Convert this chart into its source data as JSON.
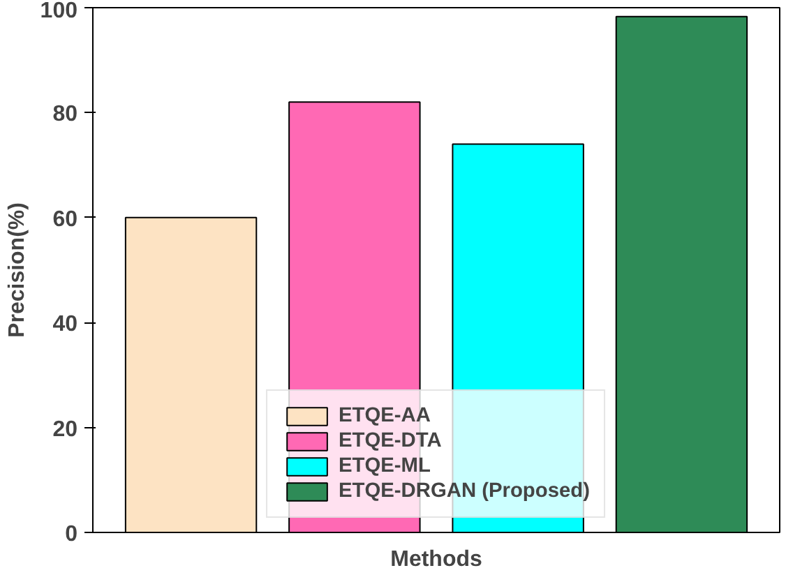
{
  "chart_data": {
    "type": "bar",
    "xlabel": "Methods",
    "ylabel": "Precision(%)",
    "categories": [
      null,
      null,
      null,
      null
    ],
    "stacked": true,
    "series": [
      {
        "name": "ETQE-AA",
        "color": "#fde3c3",
        "values": [
          60,
          null,
          null,
          null
        ]
      },
      {
        "name": "ETQE-DTA",
        "color": "#ff69b4",
        "values": [
          null,
          82,
          null,
          null
        ]
      },
      {
        "name": "ETQE-ML",
        "color": "#00ffff",
        "values": [
          null,
          null,
          74,
          null
        ]
      },
      {
        "name": "ETQE-DRGAN (Proposed)",
        "color": "#2e8b57",
        "values": [
          null,
          null,
          null,
          98.3
        ]
      }
    ],
    "ylim": [
      0,
      100
    ],
    "yticks": [
      0,
      20,
      40,
      60,
      80,
      100
    ],
    "grid": false,
    "legend": "bottom"
  }
}
